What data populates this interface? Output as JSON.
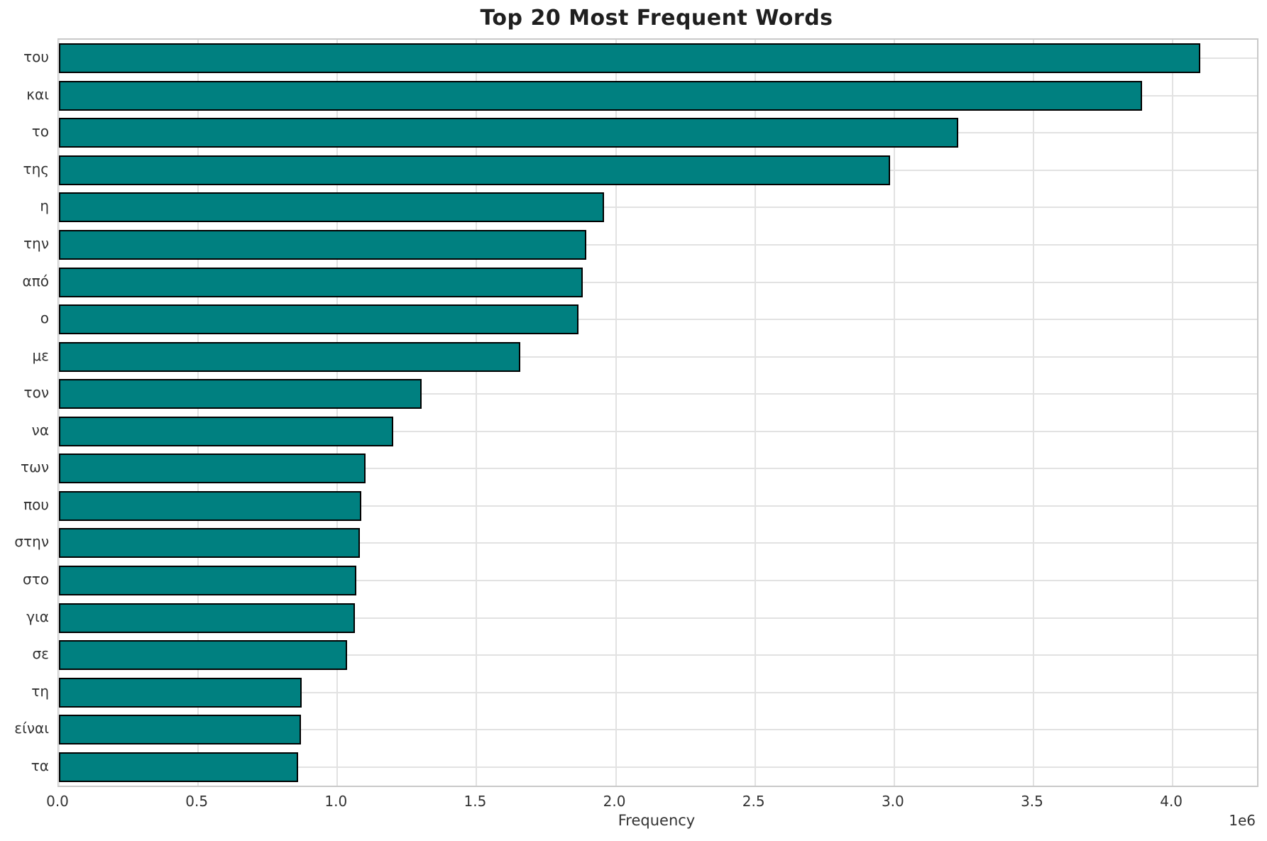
{
  "title": "Top 20 Most Frequent Words",
  "axis": {
    "xlabel": "Frequency",
    "offset_label": "1e6"
  },
  "colors": {
    "bar_fill": "#008080",
    "bar_edge": "#000000",
    "grid": "#e2e2e2",
    "spine": "#c9c9c9",
    "title": "#1f1f1f",
    "tick": "#333333"
  },
  "chart_data": {
    "type": "bar",
    "orientation": "horizontal",
    "title": "Top 20 Most Frequent Words",
    "xlabel": "Frequency",
    "ylabel": "",
    "categories": [
      "του",
      "και",
      "το",
      "της",
      "η",
      "την",
      "από",
      "ο",
      "με",
      "τον",
      "να",
      "των",
      "που",
      "στην",
      "στο",
      "για",
      "σε",
      "τη",
      "είναι",
      "τα"
    ],
    "values": [
      4100000,
      3890000,
      3230000,
      2985000,
      1957000,
      1894000,
      1882000,
      1866000,
      1656000,
      1303000,
      1200000,
      1102000,
      1087000,
      1082000,
      1067000,
      1062000,
      1034000,
      871000,
      868000,
      860000
    ],
    "xlim": [
      0,
      4303000
    ],
    "xticks": [
      0,
      500000,
      1000000,
      1500000,
      2000000,
      2500000,
      3000000,
      3500000,
      4000000
    ],
    "xtick_labels": [
      "0.0",
      "0.5",
      "1.0",
      "1.5",
      "2.0",
      "2.5",
      "3.0",
      "3.5",
      "4.0"
    ],
    "x_multiplier_label": "1e6",
    "grid": true,
    "legend": false,
    "bar_height_fraction": 0.8
  }
}
